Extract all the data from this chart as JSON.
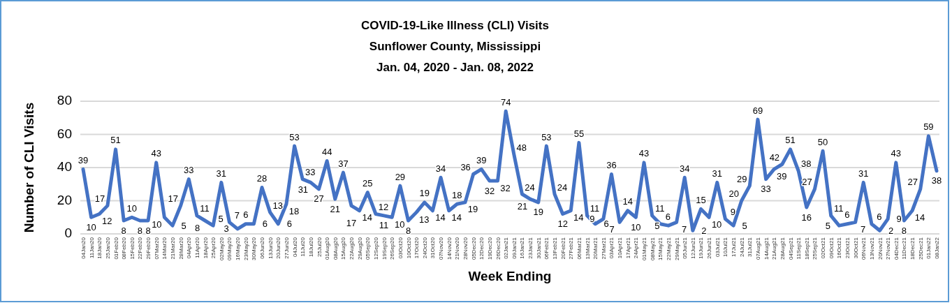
{
  "chart_data": {
    "type": "line",
    "title": "COVID-19-Like Illness (CLI) Visits",
    "subtitle": "Sunflower County, Mississippi\nJan. 04, 2020 - Jan. 08, 2022",
    "xlabel": "Week Ending",
    "ylabel": "Number of CLI Visits",
    "categories": [
      "04Jan20",
      "11Jan20",
      "18Jan20",
      "25Jan20",
      "01Feb20",
      "08Feb20",
      "15Feb20",
      "22Feb20",
      "29Feb20",
      "07Mar20",
      "14Mar20",
      "21Mar20",
      "28Mar20",
      "04Apr20",
      "11Apr20",
      "18Apr20",
      "25Apr20",
      "02May20",
      "09May20",
      "16May20",
      "23May20",
      "30May20",
      "06Jun20",
      "13Jun20",
      "20Jun20",
      "27Jun20",
      "04Jul20",
      "11Jul20",
      "18Jul20",
      "25Jul20",
      "01Aug20",
      "08Aug20",
      "15Aug20",
      "22Aug20",
      "29Aug20",
      "05Sep20",
      "12Sep20",
      "19Sep20",
      "26Sep20",
      "03Oct20",
      "10Oct20",
      "17Oct20",
      "24Oct20",
      "31Oct20",
      "07Nov20",
      "14Nov20",
      "21Nov20",
      "28Nov20",
      "05Dec20",
      "12Dec20",
      "19Dec20",
      "26Dec20",
      "02Jan21",
      "09Jan21",
      "16Jan21",
      "23Jan21",
      "30Jan21",
      "06Feb21",
      "13Feb21",
      "20Feb21",
      "27Feb21",
      "06Mar21",
      "13Mar21",
      "20Mar21",
      "27Mar21",
      "03Apr21",
      "10Apr21",
      "17Apr21",
      "24Apr21",
      "01May21",
      "08May21",
      "15May21",
      "22May21",
      "29May21",
      "05Jun21",
      "12Jun21",
      "19Jun21",
      "26Jun21",
      "03Jul21",
      "10Jul21",
      "17Jul21",
      "24Jul21",
      "31Jul21",
      "07Aug21",
      "14Aug21",
      "21Aug21",
      "28Aug21",
      "04Sep21",
      "11Sep21",
      "18Sep21",
      "25Sep21",
      "02Oct21",
      "09Oct21",
      "16Oct21",
      "23Oct21",
      "30Oct21",
      "06Nov21",
      "13Nov21",
      "20Nov21",
      "27Nov21",
      "04Dec21",
      "11Dec21",
      "18Dec21",
      "25Dec21",
      "01Jan22",
      "08Jan22"
    ],
    "series": [
      {
        "color": "#4472c4",
        "values": [
          39,
          10,
          12,
          17,
          51,
          8,
          10,
          8,
          8,
          43,
          10,
          5,
          17,
          33,
          11,
          8,
          5,
          31,
          7,
          3,
          6,
          6,
          28,
          13,
          6,
          18,
          53,
          33,
          31,
          27,
          44,
          21,
          37,
          17,
          14,
          25,
          12,
          11,
          10,
          29,
          8,
          13,
          19,
          14,
          34,
          14,
          18,
          19,
          36,
          39,
          32,
          32,
          74,
          48,
          24,
          21,
          19,
          53,
          24,
          12,
          14,
          55,
          11,
          6,
          9,
          36,
          7,
          14,
          10,
          43,
          11,
          6,
          5,
          7,
          34,
          2,
          15,
          10,
          31,
          9,
          5,
          20,
          29,
          69,
          33,
          39,
          42,
          51,
          38,
          16,
          27,
          50,
          11,
          5,
          6,
          7,
          31,
          6,
          2,
          9,
          43,
          8,
          14,
          27,
          59,
          38
        ]
      }
    ],
    "ylim": [
      0,
      80
    ],
    "yticks": [
      0,
      20,
      40,
      60,
      80
    ],
    "grid": "y",
    "data_labels": true,
    "marker": "none",
    "line_style": "solid"
  }
}
